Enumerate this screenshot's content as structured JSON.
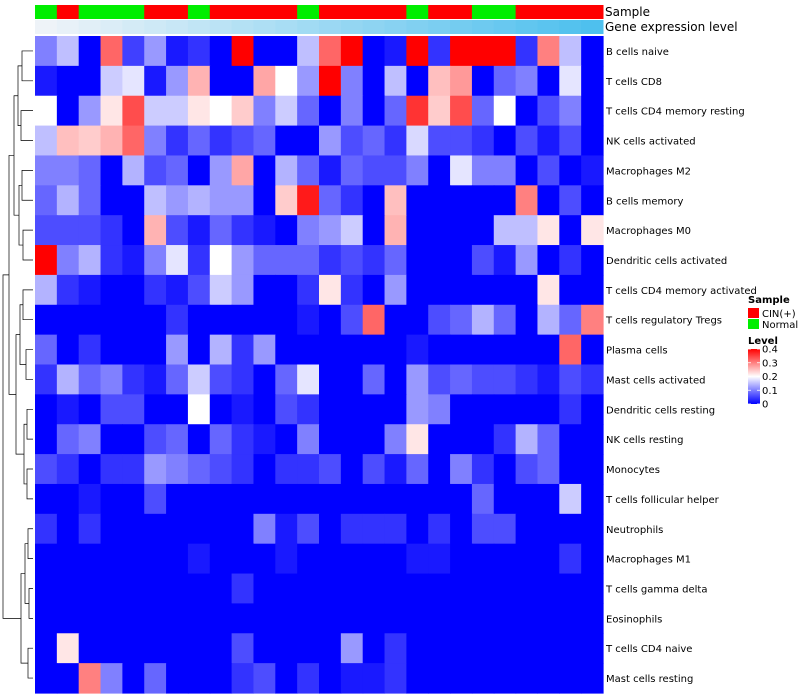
{
  "chart_data": {
    "type": "heatmap",
    "title": "",
    "annotation_labels": {
      "sample": "Sample",
      "expression": "Gene expression level"
    },
    "colors": {
      "cin": "#ff0000",
      "normal": "#00ee00",
      "low": "#0000ff",
      "mid": "#ffffff",
      "high": "#ff0000",
      "cluster_line": "#000000"
    },
    "legend": {
      "sample_title": "Sample",
      "sample_entries": [
        {
          "label": "CIN(+)",
          "color": "#ff0000"
        },
        {
          "label": "Normal",
          "color": "#00ee00"
        }
      ],
      "level_title": "Level",
      "level_ticks": [
        {
          "value": 0.4,
          "label": "0.4"
        },
        {
          "value": 0.3,
          "label": "0.3"
        },
        {
          "value": 0.2,
          "label": "0.2"
        },
        {
          "value": 0.1,
          "label": "0.1"
        },
        {
          "value": 0,
          "label": "0"
        }
      ],
      "level_range": [
        0,
        0.4
      ]
    },
    "sample_groups": [
      "Normal",
      "CIN(+)",
      "Normal",
      "Normal",
      "Normal",
      "CIN(+)",
      "CIN(+)",
      "Normal",
      "CIN(+)",
      "CIN(+)",
      "CIN(+)",
      "CIN(+)",
      "Normal",
      "CIN(+)",
      "CIN(+)",
      "CIN(+)",
      "CIN(+)",
      "Normal",
      "CIN(+)",
      "CIN(+)",
      "Normal",
      "Normal",
      "CIN(+)",
      "CIN(+)",
      "CIN(+)",
      "CIN(+)"
    ],
    "expression_levels": [
      0.02,
      0.04,
      0.06,
      0.08,
      0.1,
      0.12,
      0.14,
      0.16,
      0.18,
      0.2,
      0.22,
      0.24,
      0.26,
      0.28,
      0.3,
      0.32,
      0.34,
      0.36,
      0.38,
      0.4,
      0.42,
      0.44,
      0.46,
      0.48,
      0.5,
      0.52
    ],
    "rows": [
      "B cells naive",
      "T cells CD8",
      "T cells CD4 memory resting",
      "NK cells activated",
      "Macrophages M2",
      "B cells memory",
      "Macrophages M0",
      "Dendritic cells activated",
      "T cells CD4 memory activated",
      "T cells regulatory  Tregs",
      "Plasma cells",
      "Mast cells activated",
      "Dendritic cells resting",
      "NK cells resting",
      "Monocytes",
      "T cells follicular helper",
      "Neutrophils",
      "Macrophages M1",
      "T cells gamma delta",
      "Eosinophils",
      "T cells CD4 naive",
      "Mast cells resting"
    ],
    "values": [
      [
        0.1,
        0.15,
        0.0,
        0.32,
        0.05,
        0.12,
        0.02,
        0.04,
        0.0,
        0.4,
        0.0,
        0.0,
        0.15,
        0.32,
        0.4,
        0.0,
        0.02,
        0.4,
        0.04,
        0.4,
        0.4,
        0.4,
        0.04,
        0.3,
        0.15,
        0.0
      ],
      [
        0.02,
        0.0,
        0.0,
        0.16,
        0.18,
        0.02,
        0.12,
        0.26,
        0.0,
        0.0,
        0.27,
        0.2,
        0.12,
        0.4,
        0.1,
        0.0,
        0.15,
        0.0,
        0.25,
        0.28,
        0.0,
        0.08,
        0.1,
        0.0,
        0.18,
        0.0
      ],
      [
        0.2,
        0.0,
        0.12,
        0.22,
        0.34,
        0.16,
        0.16,
        0.22,
        0.2,
        0.24,
        0.1,
        0.16,
        0.08,
        0.0,
        0.1,
        0.0,
        0.08,
        0.36,
        0.24,
        0.34,
        0.08,
        0.2,
        0.0,
        0.06,
        0.1,
        0.0
      ],
      [
        0.15,
        0.25,
        0.24,
        0.26,
        0.32,
        0.1,
        0.04,
        0.08,
        0.04,
        0.06,
        0.08,
        0.0,
        0.0,
        0.12,
        0.06,
        0.08,
        0.04,
        0.17,
        0.06,
        0.06,
        0.04,
        0.0,
        0.06,
        0.02,
        0.06,
        0.0
      ],
      [
        0.1,
        0.1,
        0.08,
        0.0,
        0.14,
        0.06,
        0.08,
        0.0,
        0.12,
        0.27,
        0.0,
        0.14,
        0.08,
        0.02,
        0.08,
        0.06,
        0.06,
        0.1,
        0.0,
        0.18,
        0.1,
        0.1,
        0.0,
        0.06,
        0.0,
        0.02
      ],
      [
        0.08,
        0.14,
        0.08,
        0.0,
        0.0,
        0.15,
        0.12,
        0.14,
        0.12,
        0.12,
        0.0,
        0.24,
        0.38,
        0.08,
        0.04,
        0.0,
        0.25,
        0.0,
        0.0,
        0.0,
        0.0,
        0.0,
        0.3,
        0.0,
        0.06,
        0.0
      ],
      [
        0.06,
        0.06,
        0.06,
        0.04,
        0.0,
        0.26,
        0.06,
        0.02,
        0.08,
        0.04,
        0.02,
        0.0,
        0.1,
        0.12,
        0.16,
        0.0,
        0.26,
        0.0,
        0.0,
        0.0,
        0.0,
        0.15,
        0.15,
        0.22,
        0.0,
        0.22
      ],
      [
        0.4,
        0.1,
        0.14,
        0.04,
        0.02,
        0.1,
        0.18,
        0.04,
        0.2,
        0.12,
        0.08,
        0.08,
        0.08,
        0.04,
        0.06,
        0.04,
        0.08,
        0.0,
        0.0,
        0.0,
        0.06,
        0.02,
        0.12,
        0.0,
        0.04,
        0.0
      ],
      [
        0.14,
        0.04,
        0.02,
        0.0,
        0.0,
        0.04,
        0.02,
        0.06,
        0.16,
        0.12,
        0.0,
        0.0,
        0.04,
        0.22,
        0.04,
        0.0,
        0.12,
        0.0,
        0.0,
        0.0,
        0.0,
        0.0,
        0.0,
        0.22,
        0.0,
        0.0
      ],
      [
        0.0,
        0.0,
        0.0,
        0.0,
        0.0,
        0.0,
        0.04,
        0.0,
        0.0,
        0.0,
        0.0,
        0.0,
        0.02,
        0.0,
        0.06,
        0.32,
        0.0,
        0.0,
        0.06,
        0.08,
        0.14,
        0.08,
        0.0,
        0.14,
        0.08,
        0.3
      ],
      [
        0.08,
        0.0,
        0.04,
        0.0,
        0.0,
        0.0,
        0.12,
        0.0,
        0.14,
        0.04,
        0.12,
        0.0,
        0.0,
        0.0,
        0.0,
        0.0,
        0.0,
        0.02,
        0.0,
        0.0,
        0.0,
        0.0,
        0.0,
        0.0,
        0.32,
        0.0
      ],
      [
        0.04,
        0.14,
        0.08,
        0.1,
        0.04,
        0.02,
        0.08,
        0.16,
        0.06,
        0.04,
        0.0,
        0.08,
        0.18,
        0.0,
        0.0,
        0.08,
        0.0,
        0.12,
        0.06,
        0.08,
        0.06,
        0.06,
        0.04,
        0.02,
        0.06,
        0.04
      ],
      [
        0.0,
        0.02,
        0.0,
        0.06,
        0.06,
        0.0,
        0.0,
        0.2,
        0.0,
        0.02,
        0.0,
        0.06,
        0.04,
        0.0,
        0.0,
        0.0,
        0.0,
        0.12,
        0.1,
        0.0,
        0.0,
        0.0,
        0.0,
        0.0,
        0.04,
        0.0
      ],
      [
        0.0,
        0.08,
        0.1,
        0.0,
        0.0,
        0.06,
        0.08,
        0.0,
        0.08,
        0.04,
        0.02,
        0.0,
        0.1,
        0.0,
        0.0,
        0.0,
        0.1,
        0.22,
        0.0,
        0.0,
        0.0,
        0.04,
        0.14,
        0.08,
        0.0,
        0.0
      ],
      [
        0.06,
        0.04,
        0.0,
        0.04,
        0.04,
        0.12,
        0.1,
        0.08,
        0.06,
        0.04,
        0.0,
        0.04,
        0.04,
        0.06,
        0.0,
        0.06,
        0.02,
        0.08,
        0.0,
        0.1,
        0.04,
        0.0,
        0.06,
        0.08,
        0.0,
        0.0
      ],
      [
        0.0,
        0.0,
        0.02,
        0.0,
        0.0,
        0.06,
        0.0,
        0.0,
        0.0,
        0.0,
        0.0,
        0.0,
        0.0,
        0.0,
        0.0,
        0.0,
        0.0,
        0.0,
        0.0,
        0.0,
        0.08,
        0.0,
        0.0,
        0.0,
        0.16,
        0.0
      ],
      [
        0.04,
        0.0,
        0.04,
        0.0,
        0.0,
        0.0,
        0.0,
        0.0,
        0.0,
        0.0,
        0.1,
        0.02,
        0.06,
        0.0,
        0.04,
        0.04,
        0.04,
        0.0,
        0.04,
        0.0,
        0.06,
        0.06,
        0.0,
        0.0,
        0.0,
        0.0
      ],
      [
        0.0,
        0.0,
        0.0,
        0.0,
        0.0,
        0.0,
        0.0,
        0.02,
        0.0,
        0.0,
        0.0,
        0.02,
        0.0,
        0.0,
        0.0,
        0.0,
        0.0,
        0.02,
        0.02,
        0.0,
        0.0,
        0.0,
        0.0,
        0.0,
        0.04,
        0.0
      ],
      [
        0.0,
        0.0,
        0.0,
        0.0,
        0.0,
        0.0,
        0.0,
        0.0,
        0.0,
        0.04,
        0.0,
        0.0,
        0.0,
        0.0,
        0.0,
        0.0,
        0.0,
        0.0,
        0.0,
        0.0,
        0.0,
        0.0,
        0.0,
        0.0,
        0.0,
        0.0
      ],
      [
        0.0,
        0.0,
        0.0,
        0.0,
        0.0,
        0.0,
        0.0,
        0.0,
        0.0,
        0.0,
        0.0,
        0.0,
        0.0,
        0.0,
        0.0,
        0.0,
        0.0,
        0.0,
        0.0,
        0.0,
        0.0,
        0.0,
        0.0,
        0.0,
        0.0,
        0.0
      ],
      [
        0.0,
        0.22,
        0.0,
        0.0,
        0.0,
        0.0,
        0.0,
        0.0,
        0.0,
        0.06,
        0.0,
        0.0,
        0.0,
        0.0,
        0.12,
        0.0,
        0.04,
        0.0,
        0.0,
        0.0,
        0.0,
        0.0,
        0.0,
        0.0,
        0.0,
        0.0
      ],
      [
        0.0,
        0.0,
        0.3,
        0.1,
        0.0,
        0.08,
        0.0,
        0.0,
        0.0,
        0.04,
        0.06,
        0.0,
        0.04,
        0.0,
        0.02,
        0.02,
        0.04,
        0.0,
        0.0,
        0.0,
        0.0,
        0.0,
        0.0,
        0.0,
        0.0,
        0.0
      ]
    ],
    "row_order_note": "",
    "dendrogram": {
      "merges": [
        [
          0,
          1,
          0.55
        ],
        [
          2,
          3,
          0.6
        ],
        [
          4,
          5,
          0.55
        ],
        [
          6,
          7,
          0.5
        ],
        [
          8,
          9,
          0.5
        ],
        [
          10,
          11,
          0.35
        ],
        [
          12,
          13,
          0.3
        ],
        [
          14,
          15,
          0.3
        ],
        [
          16,
          17,
          0.25
        ],
        [
          18,
          19,
          0.2
        ],
        [
          20,
          21,
          0.25
        ]
      ]
    }
  }
}
